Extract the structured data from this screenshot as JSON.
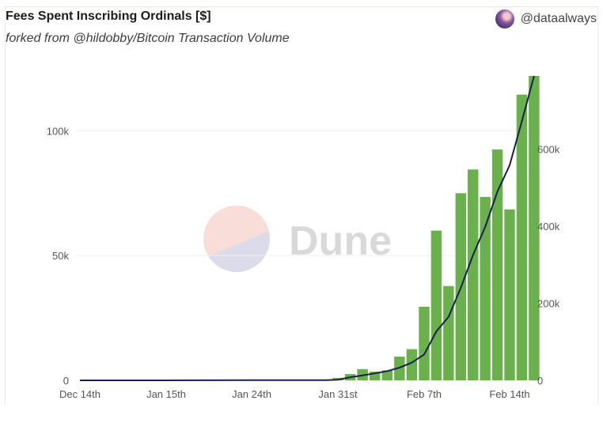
{
  "header": {
    "title": "Fees Spent Inscribing Ordinals [$]",
    "subtitle": "forked from @hildobby/Bitcoin Transaction Volume",
    "author": "@dataalways"
  },
  "watermark": {
    "text": "Dune"
  },
  "colors": {
    "bar": "#6ab04c",
    "line": "#1a1f4f",
    "grid": "#efefef"
  },
  "chart_data": {
    "type": "bar",
    "title": "Fees Spent Inscribing Ordinals [$]",
    "subtitle": "forked from @hildobby/Bitcoin Transaction Volume",
    "x_tick_labels": [
      "Dec 14th",
      "Jan 15th",
      "Jan 24th",
      "Jan 31st",
      "Feb 7th",
      "Feb 14th"
    ],
    "y_left": {
      "ylim": [
        0,
        122000
      ],
      "ticks": [
        0,
        50000,
        100000
      ],
      "tick_labels": [
        "0",
        "50k",
        "100k"
      ]
    },
    "y_right": {
      "ylim": [
        0,
        790000
      ],
      "ticks": [
        0,
        200000,
        400000,
        600000
      ],
      "tick_labels": [
        "0",
        "200k",
        "400k",
        "600k"
      ]
    },
    "grid": true,
    "series": [
      {
        "kind": "bar",
        "axis": "left",
        "points": [
          {
            "day": "Jan 30th",
            "value": 200
          },
          {
            "day": "Jan 31st",
            "value": 1000
          },
          {
            "day": "Feb 1st",
            "value": 2500
          },
          {
            "day": "Feb 2nd",
            "value": 4500
          },
          {
            "day": "Feb 3rd",
            "value": 3500
          },
          {
            "day": "Feb 4th",
            "value": 4000
          },
          {
            "day": "Feb 5th",
            "value": 9500
          },
          {
            "day": "Feb 6th",
            "value": 12500
          },
          {
            "day": "Feb 7th",
            "value": 29500
          },
          {
            "day": "Feb 8th",
            "value": 60000
          },
          {
            "day": "Feb 9th",
            "value": 37800
          },
          {
            "day": "Feb 10th",
            "value": 75000
          },
          {
            "day": "Feb 11th",
            "value": 84500
          },
          {
            "day": "Feb 12th",
            "value": 73500
          },
          {
            "day": "Feb 13th",
            "value": 92500
          },
          {
            "day": "Feb 14th",
            "value": 68500
          },
          {
            "day": "Feb 15th",
            "value": 114500
          },
          {
            "day": "Feb 16th",
            "value": 122000
          }
        ]
      },
      {
        "kind": "line",
        "axis": "right",
        "points": [
          {
            "day": "Dec 14th",
            "value": 0
          },
          {
            "day": "Jan 15th",
            "value": 0
          },
          {
            "day": "Jan 24th",
            "value": 500
          },
          {
            "day": "Jan 29th",
            "value": 500
          },
          {
            "day": "Jan 30th",
            "value": 700
          },
          {
            "day": "Jan 31st",
            "value": 1700
          },
          {
            "day": "Feb 1st",
            "value": 8000
          },
          {
            "day": "Feb 2nd",
            "value": 13000
          },
          {
            "day": "Feb 3rd",
            "value": 18000
          },
          {
            "day": "Feb 4th",
            "value": 24000
          },
          {
            "day": "Feb 5th",
            "value": 33000
          },
          {
            "day": "Feb 6th",
            "value": 46000
          },
          {
            "day": "Feb 7th",
            "value": 67000
          },
          {
            "day": "Feb 8th",
            "value": 127000
          },
          {
            "day": "Feb 9th",
            "value": 165000
          },
          {
            "day": "Feb 10th",
            "value": 240000
          },
          {
            "day": "Feb 11th",
            "value": 325000
          },
          {
            "day": "Feb 12th",
            "value": 398000
          },
          {
            "day": "Feb 13th",
            "value": 490000
          },
          {
            "day": "Feb 14th",
            "value": 558000
          },
          {
            "day": "Feb 15th",
            "value": 672000
          },
          {
            "day": "Feb 16th",
            "value": 790000
          }
        ]
      }
    ]
  }
}
